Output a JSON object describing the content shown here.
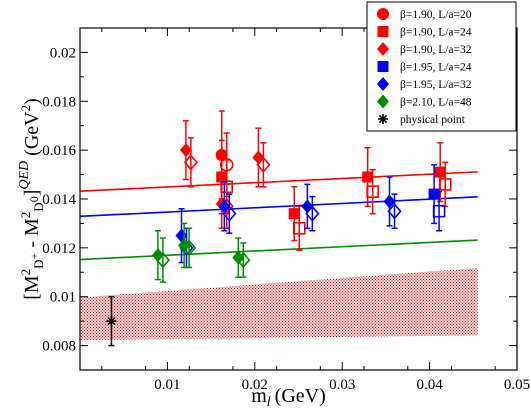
{
  "chart_data": {
    "type": "scatter",
    "xlabel_main": "m",
    "xlabel_sub": "l",
    "xlabel_unit": "(GeV)",
    "ylabel": "[M²D⁺ - M²D⁰]^QED (GeV²)",
    "xlim": [
      0.0,
      0.05
    ],
    "ylim": [
      0.007,
      0.021
    ],
    "x_ticks": [
      "0.01",
      "0.02",
      "0.03",
      "0.04",
      "0.05"
    ],
    "y_ticks": [
      "0.008",
      "0.01",
      "0.012",
      "0.014",
      "0.016",
      "0.018",
      "0.02"
    ],
    "legend_position": "top-right",
    "colors": {
      "red": "#ff0000",
      "blue": "#0000ff",
      "green": "#008c00",
      "band": "#b22222",
      "black": "#000000"
    },
    "series": [
      {
        "name": "β=1.90, L/a=20",
        "marker": "circle",
        "color": "#ff0000",
        "points": [
          {
            "x": 0.0165,
            "y": 0.0158,
            "filled_err": 0.0018,
            "open": 0.0154,
            "open_err": 0.0013
          }
        ]
      },
      {
        "name": "β=1.90, L/a=24",
        "marker": "square",
        "color": "#ff0000",
        "points": [
          {
            "x": 0.0165,
            "y": 0.0149,
            "filled_err": 0.0015,
            "open": 0.0145,
            "open_err": 0.0011
          },
          {
            "x": 0.0248,
            "y": 0.0134,
            "filled_err": 0.0011,
            "open": 0.0128,
            "open_err": 0.0009
          },
          {
            "x": 0.0332,
            "y": 0.0149,
            "filled_err": 0.0012,
            "open": 0.0143,
            "open_err": 0.0009
          },
          {
            "x": 0.0415,
            "y": 0.0151,
            "filled_err": 0.0012,
            "open": 0.0146,
            "open_err": 0.0009
          }
        ]
      },
      {
        "name": "β=1.90, L/a=32",
        "marker": "diamond",
        "color": "#ff0000",
        "points": [
          {
            "x": 0.0124,
            "y": 0.016,
            "filled_err": 0.0012,
            "open": 0.0155,
            "open_err": 0.001
          },
          {
            "x": 0.0165,
            "y": 0.0138,
            "filled_err": 0.001,
            "open": 0.0137,
            "open_err": 0.0009
          },
          {
            "x": 0.0207,
            "y": 0.0157,
            "filled_err": 0.0012,
            "open": 0.0154,
            "open_err": 0.0009
          }
        ]
      },
      {
        "name": "β=1.95, L/a=24",
        "marker": "square",
        "color": "#0000ff",
        "points": [
          {
            "x": 0.0408,
            "y": 0.0142,
            "filled_err": 0.0012,
            "open": 0.0135,
            "open_err": 0.0008
          }
        ]
      },
      {
        "name": "β=1.95, L/a=32",
        "marker": "diamond",
        "color": "#0000ff",
        "points": [
          {
            "x": 0.0119,
            "y": 0.0125,
            "filled_err": 0.0011,
            "open": 0.012,
            "open_err": 0.0008
          },
          {
            "x": 0.0168,
            "y": 0.0137,
            "filled_err": 0.001,
            "open": 0.0134,
            "open_err": 0.0008
          },
          {
            "x": 0.0263,
            "y": 0.0137,
            "filled_err": 0.0009,
            "open": 0.0134,
            "open_err": 0.0007
          },
          {
            "x": 0.0357,
            "y": 0.0139,
            "filled_err": 0.001,
            "open": 0.0135,
            "open_err": 0.0007
          }
        ]
      },
      {
        "name": "β=2.10, L/a=48",
        "marker": "diamond",
        "color": "#008c00",
        "points": [
          {
            "x": 0.0092,
            "y": 0.0117,
            "filled_err": 0.001,
            "open": 0.0115,
            "open_err": 0.0009
          },
          {
            "x": 0.0122,
            "y": 0.0121,
            "filled_err": 0.0009,
            "open": 0.012,
            "open_err": 0.0008
          },
          {
            "x": 0.0184,
            "y": 0.0116,
            "filled_err": 0.0008,
            "open": 0.0115,
            "open_err": 0.0007
          }
        ]
      },
      {
        "name": "physical point",
        "marker": "asterisk",
        "color": "#000000",
        "points": [
          {
            "x": 0.0036,
            "y": 0.009,
            "err": 0.001
          }
        ]
      }
    ],
    "fit_lines": [
      {
        "color": "#ff0000",
        "x": [
          0.0,
          0.0455
        ],
        "y": [
          0.01432,
          0.01511
        ]
      },
      {
        "color": "#0000ff",
        "x": [
          0.0,
          0.0455
        ],
        "y": [
          0.01329,
          0.01409
        ]
      },
      {
        "color": "#008c00",
        "x": [
          0.0,
          0.0455
        ],
        "y": [
          0.01152,
          0.01232
        ]
      }
    ],
    "band": {
      "color": "#b22222",
      "x": [
        0.0,
        0.0455
      ],
      "upper": [
        0.00997,
        0.01118
      ],
      "lower": [
        0.00822,
        0.00842
      ]
    }
  }
}
